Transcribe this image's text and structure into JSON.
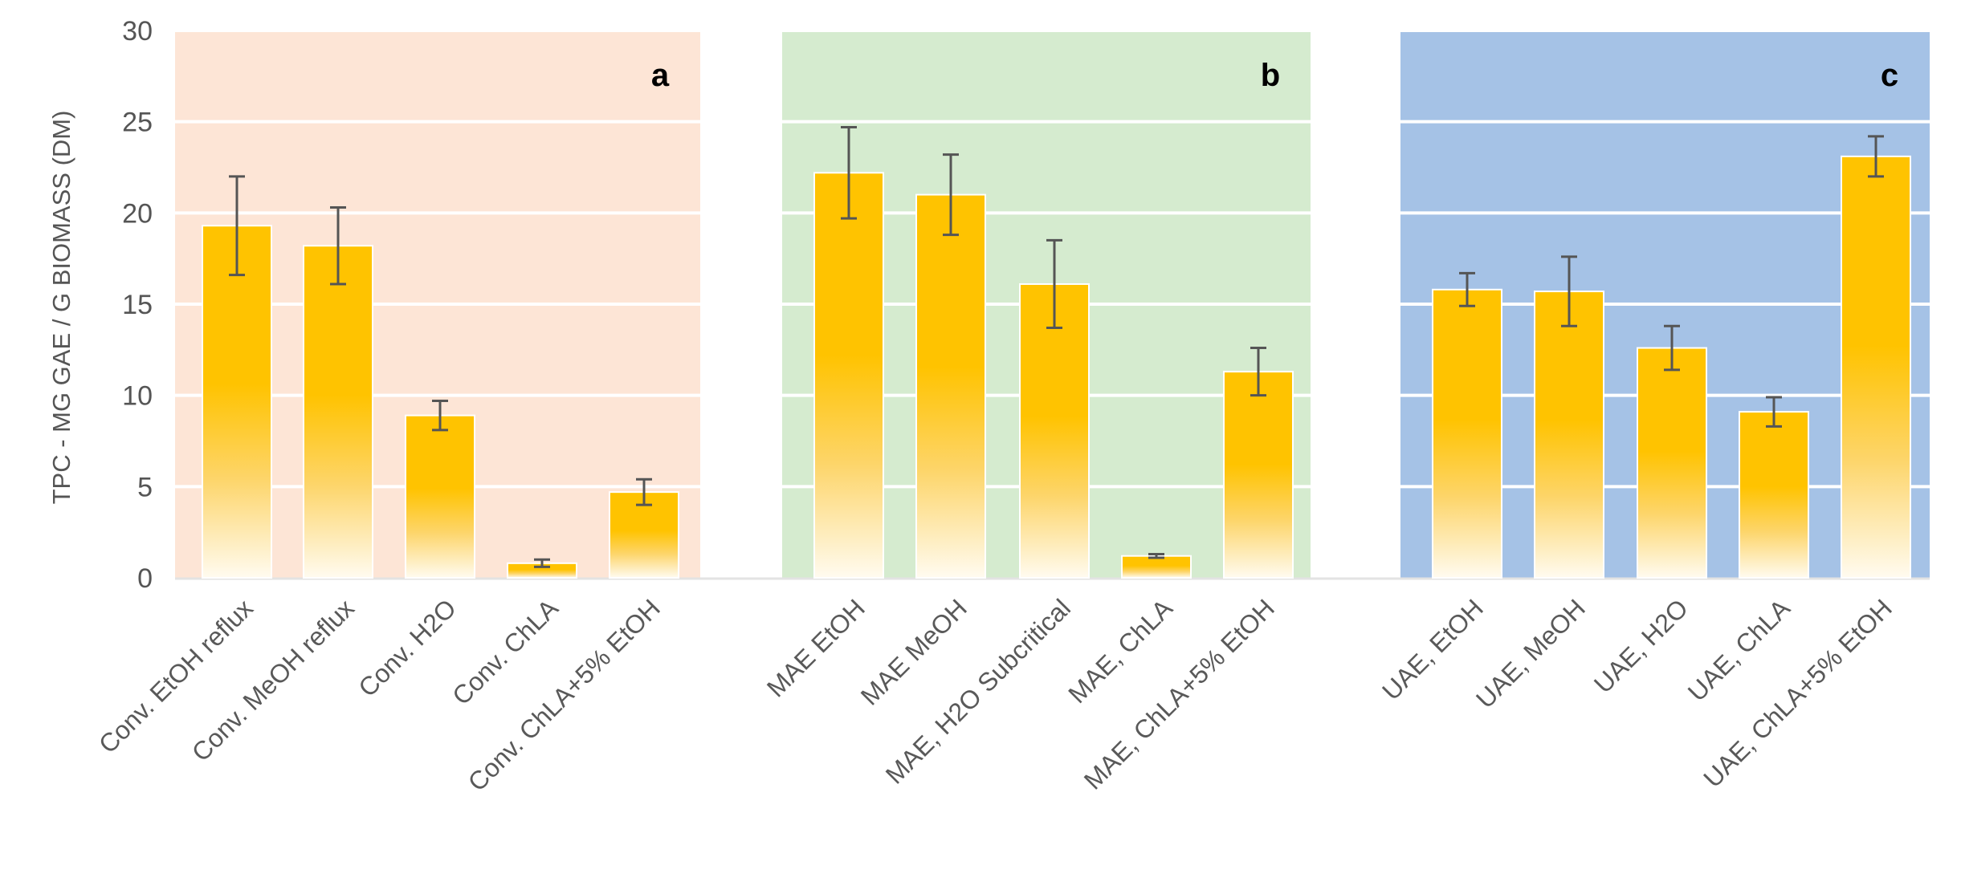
{
  "chart_data": {
    "type": "bar",
    "ylabel": "TPC -  MG GAE / G BIOMASS (DM)",
    "ylim": [
      0,
      30
    ],
    "yticks": [
      0,
      5,
      10,
      15,
      20,
      25,
      30
    ],
    "grid": true,
    "legend": "none",
    "panels": [
      {
        "letter": "a",
        "color": "#FDE5D6",
        "categories": [
          "Conv. EtOH reflux",
          "Conv. MeOH reflux",
          "Conv. H2O",
          "Conv. ChLA",
          "Conv. ChLA+5% EtOH"
        ],
        "values": [
          19.3,
          18.2,
          8.9,
          0.8,
          4.7
        ],
        "errors": [
          2.7,
          2.1,
          0.8,
          0.2,
          0.7
        ]
      },
      {
        "letter": "b",
        "color": "#D5EBCF",
        "categories": [
          "MAE EtOH",
          "MAE MeOH",
          "MAE, H2O Subcritical",
          "MAE, ChLA",
          "MAE, ChLA+5% EtOH"
        ],
        "values": [
          22.2,
          21.0,
          16.1,
          1.2,
          11.3
        ],
        "errors": [
          2.5,
          2.2,
          2.4,
          0.1,
          1.3
        ]
      },
      {
        "letter": "c",
        "color": "#A5C2E6",
        "categories": [
          "UAE, EtOH",
          "UAE, MeOH",
          "UAE, H2O",
          "UAE, ChLA",
          "UAE, ChLA+5% EtOH"
        ],
        "values": [
          15.8,
          15.7,
          12.6,
          9.1,
          23.1
        ],
        "errors": [
          0.9,
          1.9,
          1.2,
          0.8,
          1.1
        ]
      }
    ],
    "bar_color": "#FFC300",
    "error_bar_color": "#555555"
  }
}
